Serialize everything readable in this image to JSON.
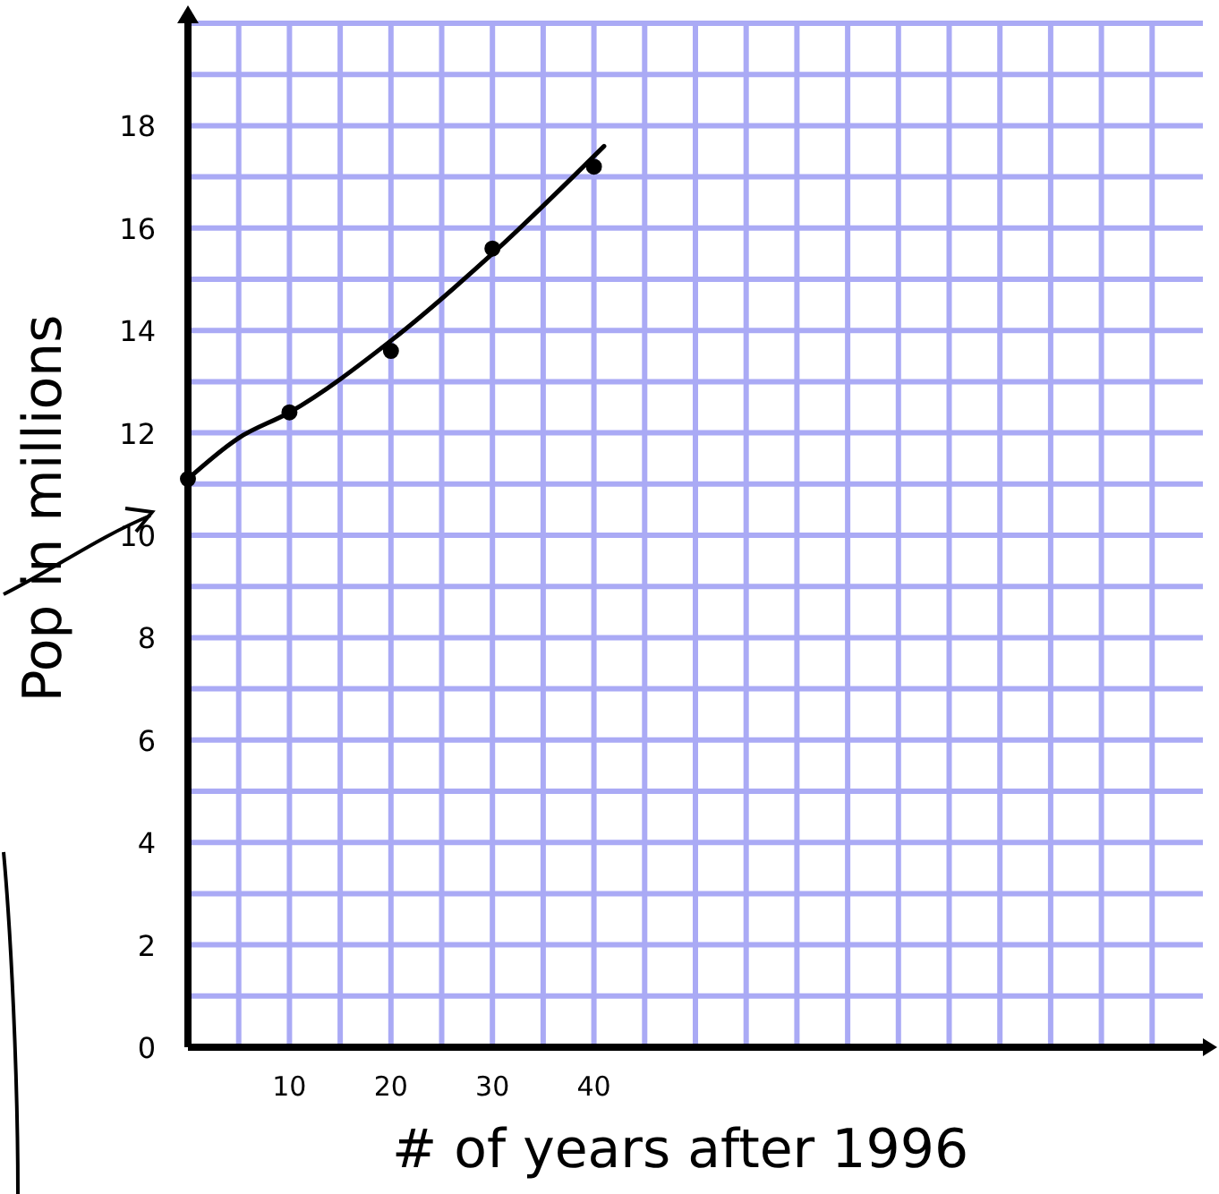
{
  "chart_data": {
    "type": "scatter",
    "xlabel": "# of years after 1996",
    "ylabel": "Pop in millions",
    "xlim": [
      0,
      100
    ],
    "ylim": [
      0,
      20
    ],
    "xticks": [
      {
        "value": 5,
        "label": null
      },
      10,
      {
        "value": 15,
        "label": null
      },
      20,
      {
        "value": 25,
        "label": null
      },
      30,
      {
        "value": 35,
        "label": null
      },
      40,
      {
        "value": 45,
        "label": null
      },
      {
        "value": 50,
        "label": null
      },
      {
        "value": 55,
        "label": null
      },
      {
        "value": 60,
        "label": null
      },
      {
        "value": 65,
        "label": null
      },
      {
        "value": 70,
        "label": null
      },
      {
        "value": 75,
        "label": null
      },
      {
        "value": 80,
        "label": null
      },
      {
        "value": 85,
        "label": null
      },
      {
        "value": 90,
        "label": null
      },
      {
        "value": 95,
        "label": null
      }
    ],
    "yticks": [
      0,
      {
        "value": 1,
        "label": null
      },
      2,
      {
        "value": 3,
        "label": null
      },
      4,
      {
        "value": 5,
        "label": null
      },
      6,
      {
        "value": 7,
        "label": null
      },
      8,
      {
        "value": 9,
        "label": null
      },
      10,
      {
        "value": 11,
        "label": null
      },
      12,
      {
        "value": 13,
        "label": null
      },
      14,
      {
        "value": 15,
        "label": null
      },
      16,
      {
        "value": 17,
        "label": null
      },
      18,
      {
        "value": 19,
        "label": null
      },
      {
        "value": 20,
        "label": null
      }
    ],
    "grid": true,
    "series": [
      {
        "color": "#000000",
        "marker": "circle",
        "x": [
          0,
          10,
          20,
          30,
          40
        ],
        "values": [
          11.1,
          12.4,
          13.6,
          15.6,
          17.2
        ]
      },
      {
        "type": "line",
        "color": "#000000",
        "marker": "none",
        "line_style": "solid",
        "x": [
          0,
          5,
          10,
          20,
          30,
          41
        ],
        "values": [
          11.1,
          11.9,
          12.4,
          13.8,
          15.5,
          17.6
        ]
      }
    ]
  }
}
